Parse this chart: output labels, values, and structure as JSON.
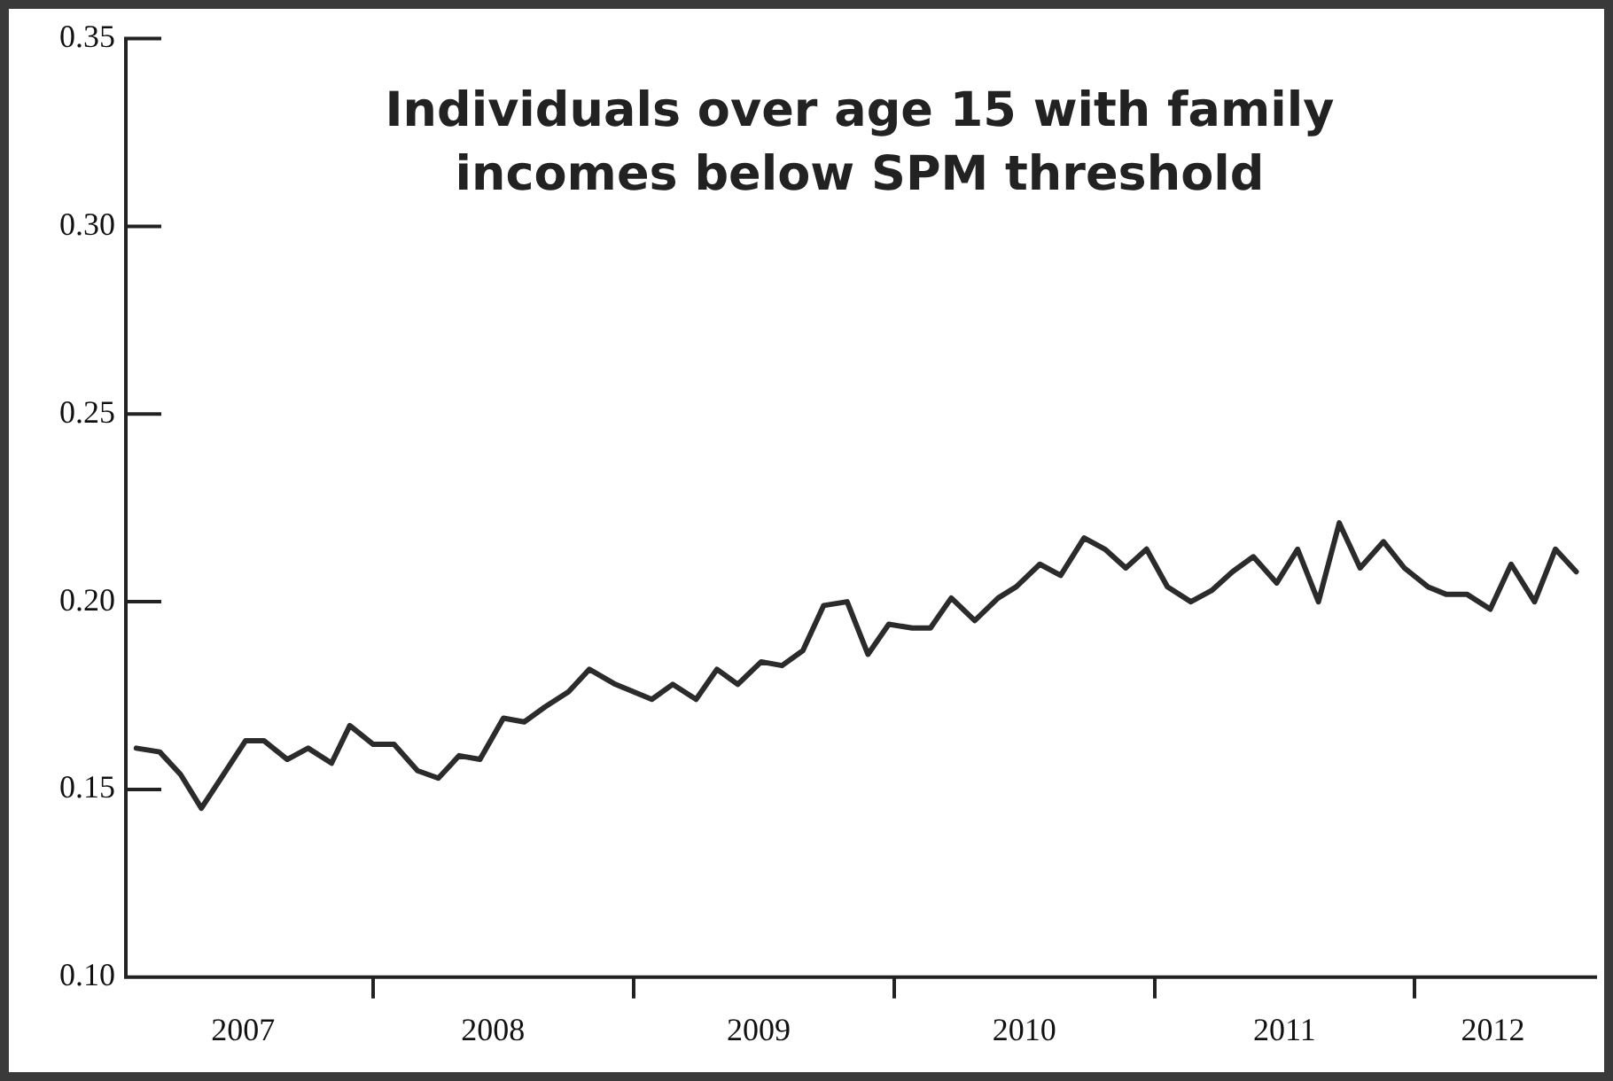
{
  "chart_data": {
    "type": "line",
    "title": "Individuals over age 15 with family incomes below SPM threshold",
    "series": [
      {
        "color": "#2b2b2b",
        "x": [
          2007.09,
          2007.18,
          2007.26,
          2007.34,
          2007.51,
          2007.58,
          2007.67,
          2007.75,
          2007.84,
          2007.91,
          2008.0,
          2008.08,
          2008.17,
          2008.25,
          2008.33,
          2008.41,
          2008.5,
          2008.58,
          2008.66,
          2008.75,
          2008.83,
          2008.93,
          2009.07,
          2009.15,
          2009.24,
          2009.32,
          2009.4,
          2009.49,
          2009.57,
          2009.65,
          2009.73,
          2009.82,
          2009.9,
          2009.98,
          2010.07,
          2010.14,
          2010.22,
          2010.31,
          2010.4,
          2010.47,
          2010.56,
          2010.64,
          2010.73,
          2010.81,
          2010.89,
          2010.97,
          2011.05,
          2011.14,
          2011.22,
          2011.3,
          2011.38,
          2011.47,
          2011.55,
          2011.63,
          2011.71,
          2011.79,
          2011.88,
          2011.96,
          2012.05,
          2012.12,
          2012.2,
          2012.29,
          2012.37,
          2012.46,
          2012.54,
          2012.62
        ],
        "values": [
          0.161,
          0.16,
          0.154,
          0.145,
          0.163,
          0.163,
          0.158,
          0.161,
          0.157,
          0.167,
          0.162,
          0.162,
          0.155,
          0.153,
          0.159,
          0.158,
          0.169,
          0.168,
          0.172,
          0.176,
          0.182,
          0.178,
          0.174,
          0.178,
          0.174,
          0.182,
          0.178,
          0.184,
          0.183,
          0.187,
          0.199,
          0.2,
          0.186,
          0.194,
          0.193,
          0.193,
          0.201,
          0.195,
          0.201,
          0.204,
          0.21,
          0.207,
          0.217,
          0.214,
          0.209,
          0.214,
          0.204,
          0.2,
          0.203,
          0.208,
          0.212,
          0.205,
          0.214,
          0.2,
          0.221,
          0.209,
          0.216,
          0.209,
          0.204,
          0.202,
          0.202,
          0.198,
          0.21,
          0.2,
          0.214,
          0.208
        ]
      }
    ],
    "xlim": [
      2007.05,
      2012.7
    ],
    "xticks": [
      {
        "value": 2007.5,
        "label": "2007"
      },
      {
        "value": 2008,
        "label": null
      },
      {
        "value": 2008.46,
        "label": "2008"
      },
      {
        "value": 2009,
        "label": null
      },
      {
        "value": 2009.48,
        "label": "2009"
      },
      {
        "value": 2010,
        "label": null
      },
      {
        "value": 2010.5,
        "label": "2010"
      },
      {
        "value": 2011,
        "label": null
      },
      {
        "value": 2011.5,
        "label": "2011"
      },
      {
        "value": 2012,
        "label": null
      },
      {
        "value": 2012.3,
        "label": "2012"
      }
    ],
    "ylim": [
      0.1,
      0.35
    ],
    "yticks": [
      {
        "value": 0.1,
        "label": "0.10"
      },
      {
        "value": 0.15,
        "label": "0.15"
      },
      {
        "value": 0.2,
        "label": "0.20"
      },
      {
        "value": 0.25,
        "label": "0.25"
      },
      {
        "value": 0.3,
        "label": "0.30"
      },
      {
        "value": 0.35,
        "label": "0.35"
      }
    ],
    "grid": false,
    "legend": false,
    "marker": "none",
    "line_style": "solid"
  }
}
